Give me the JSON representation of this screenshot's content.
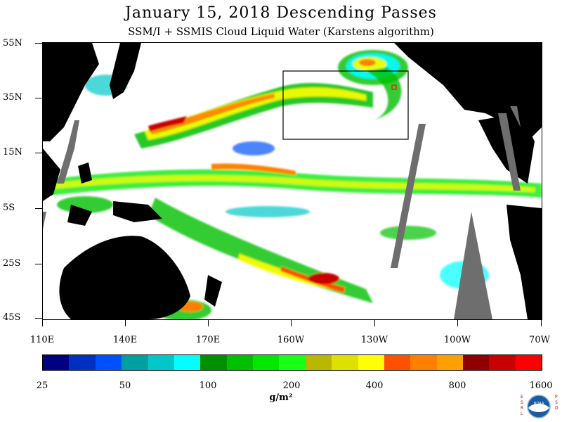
{
  "title": "January 15, 2018  Descending Passes",
  "subtitle": "SSM/I + SSMIS Cloud Liquid Water (Karstens algorithm)",
  "lat_labels": [
    "55N",
    "35N",
    "15N",
    "5S",
    "25S",
    "45S"
  ],
  "lon_labels": [
    "110E",
    "140E",
    "170E",
    "160W",
    "130W",
    "100W",
    "70W"
  ],
  "colorbar": {
    "colors": [
      "#000080",
      "#0030c0",
      "#0050ff",
      "#00a0a0",
      "#00c8c8",
      "#00ffff",
      "#009000",
      "#00c000",
      "#00e800",
      "#18ff18",
      "#b8b800",
      "#e0e000",
      "#ffff00",
      "#ff5000",
      "#ff8000",
      "#ffa000",
      "#900000",
      "#c80000",
      "#ff0000"
    ],
    "tick_labels": [
      "25",
      "50",
      "100",
      "200",
      "400",
      "800",
      "1600"
    ],
    "units": "g/m²"
  },
  "map": {
    "land_color": "#000000",
    "no_data_color": "#6e6e6e",
    "clear_color": "#ffffff",
    "lat_range": [
      "55N",
      "45S"
    ],
    "lon_range": [
      "110E",
      "70W"
    ]
  },
  "logo": {
    "left_letters": "ESRL",
    "right_letters": "PSD",
    "center_text": "NOAA"
  }
}
